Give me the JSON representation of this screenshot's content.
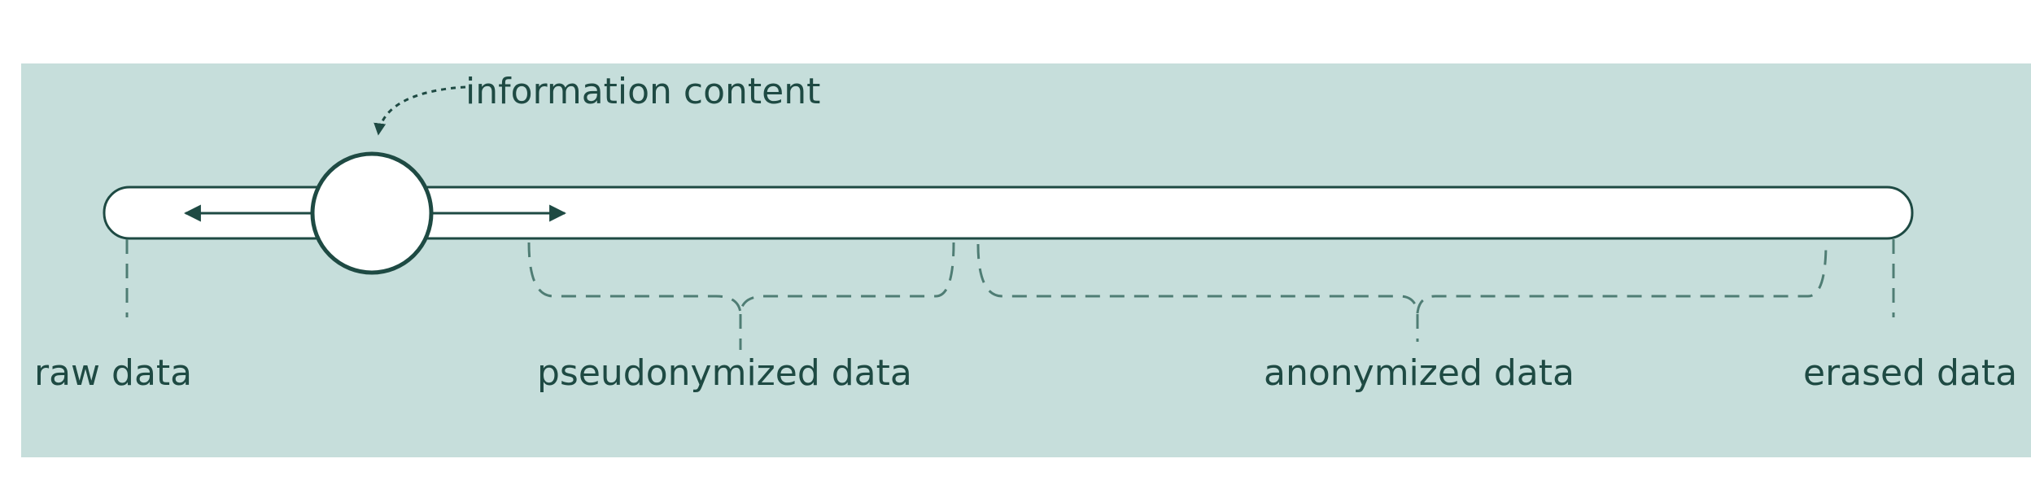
{
  "slider": {
    "value": 0.14
  },
  "annotation": {
    "label": "information content"
  },
  "labels": {
    "raw": "raw data",
    "pseudonymized": "pseudonymized data",
    "anonymized": "anonymized data",
    "erased": "erased data"
  },
  "colors": {
    "background": "#c6dedb",
    "stroke": "#1e4a43",
    "dashed": "#4f7d74",
    "track_fill": "#ffffff"
  }
}
